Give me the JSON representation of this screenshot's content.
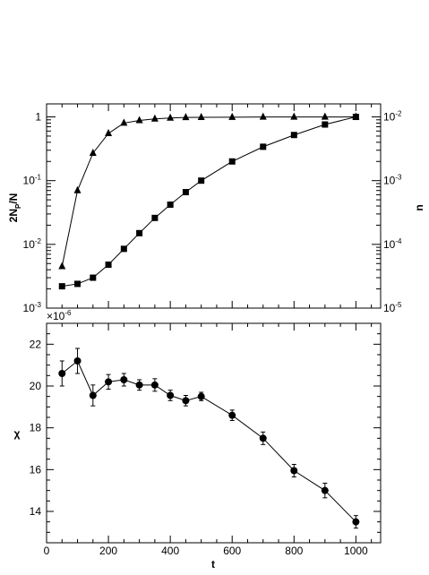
{
  "chart_data": [
    {
      "type": "line",
      "panel": "top",
      "ylabel_left": "2N_P/N",
      "ylabel_right": "n",
      "xlim": [
        0,
        1080
      ],
      "ylim_left": [
        0.001,
        1.6
      ],
      "ylim_right": [
        1e-05,
        0.016
      ],
      "yscale": "log",
      "grid": false,
      "left_ticks": [
        {
          "value": 1,
          "base": "1",
          "exp": ""
        },
        {
          "value": 0.1,
          "base": "10",
          "exp": "-1"
        },
        {
          "value": 0.01,
          "base": "10",
          "exp": "-2"
        },
        {
          "value": 0.001,
          "base": "10",
          "exp": "-3"
        }
      ],
      "right_ticks": [
        {
          "value": 0.01,
          "base": "10",
          "exp": "-2"
        },
        {
          "value": 0.001,
          "base": "10",
          "exp": "-3"
        },
        {
          "value": 0.0001,
          "base": "10",
          "exp": "-4"
        },
        {
          "value": 1e-05,
          "base": "10",
          "exp": "-5"
        }
      ],
      "series": [
        {
          "marker": "triangle",
          "axis": "left",
          "x": [
            50,
            100,
            150,
            200,
            250,
            300,
            350,
            400,
            450,
            500,
            600,
            700,
            800,
            900,
            1000
          ],
          "y": [
            0.0045,
            0.07,
            0.27,
            0.55,
            0.8,
            0.88,
            0.93,
            0.96,
            0.98,
            0.985,
            0.99,
            0.995,
            0.997,
            0.998,
            0.999
          ]
        },
        {
          "marker": "square",
          "axis": "right",
          "x": [
            50,
            100,
            150,
            200,
            250,
            300,
            350,
            400,
            450,
            500,
            600,
            700,
            800,
            900,
            1000
          ],
          "y": [
            2.2e-05,
            2.4e-05,
            3e-05,
            4.8e-05,
            8.5e-05,
            0.00015,
            0.00026,
            0.00042,
            0.00066,
            0.001,
            0.002,
            0.0034,
            0.0052,
            0.0076,
            0.01
          ]
        }
      ]
    },
    {
      "type": "line",
      "panel": "bottom",
      "xlabel": "t",
      "ylabel": "χ",
      "xlim": [
        0,
        1080
      ],
      "ylim": [
        12.5,
        23
      ],
      "multiplier": "×10",
      "multiplier_exp": "-6",
      "x_ticks": [
        0,
        200,
        400,
        600,
        800,
        1000
      ],
      "y_ticks": [
        14,
        16,
        18,
        20,
        22
      ],
      "grid": false,
      "series": [
        {
          "marker": "circle",
          "x": [
            50,
            100,
            150,
            200,
            250,
            300,
            350,
            400,
            450,
            500,
            600,
            700,
            800,
            900,
            1000
          ],
          "y": [
            20.6,
            21.2,
            19.55,
            20.2,
            20.3,
            20.05,
            20.05,
            19.55,
            19.3,
            19.5,
            18.6,
            17.5,
            15.95,
            15.0,
            13.5
          ],
          "err": [
            0.6,
            0.6,
            0.5,
            0.35,
            0.3,
            0.25,
            0.3,
            0.25,
            0.25,
            0.2,
            0.25,
            0.3,
            0.3,
            0.35,
            0.3
          ]
        }
      ]
    }
  ]
}
